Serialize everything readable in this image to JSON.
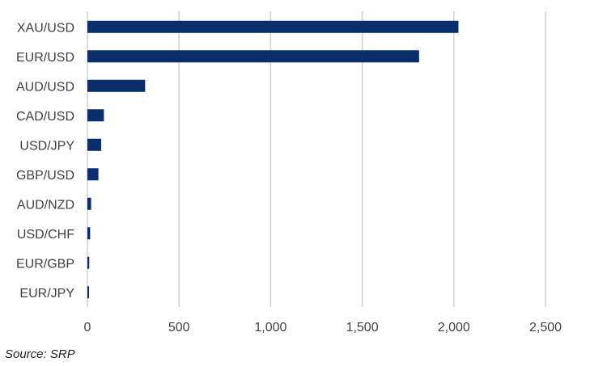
{
  "chart_data": {
    "type": "bar",
    "orientation": "horizontal",
    "categories": [
      "XAU/USD",
      "EUR/USD",
      "AUD/USD",
      "CAD/USD",
      "USD/JPY",
      "GBP/USD",
      "AUD/NZD",
      "USD/CHF",
      "EUR/GBP",
      "EUR/JPY"
    ],
    "values": [
      2025,
      1810,
      315,
      90,
      75,
      60,
      20,
      15,
      10,
      5
    ],
    "xlim": [
      0,
      2500
    ],
    "xticks": [
      0,
      500,
      1000,
      1500,
      2000,
      2500
    ],
    "xtick_labels": [
      "0",
      "500",
      "1,000",
      "1,500",
      "2,000",
      "2,500"
    ],
    "grid": "vertical",
    "legend": "none",
    "bar_color": "#0b2d6b",
    "grid_color": "#d0d0d0"
  },
  "source": "Source: SRP"
}
